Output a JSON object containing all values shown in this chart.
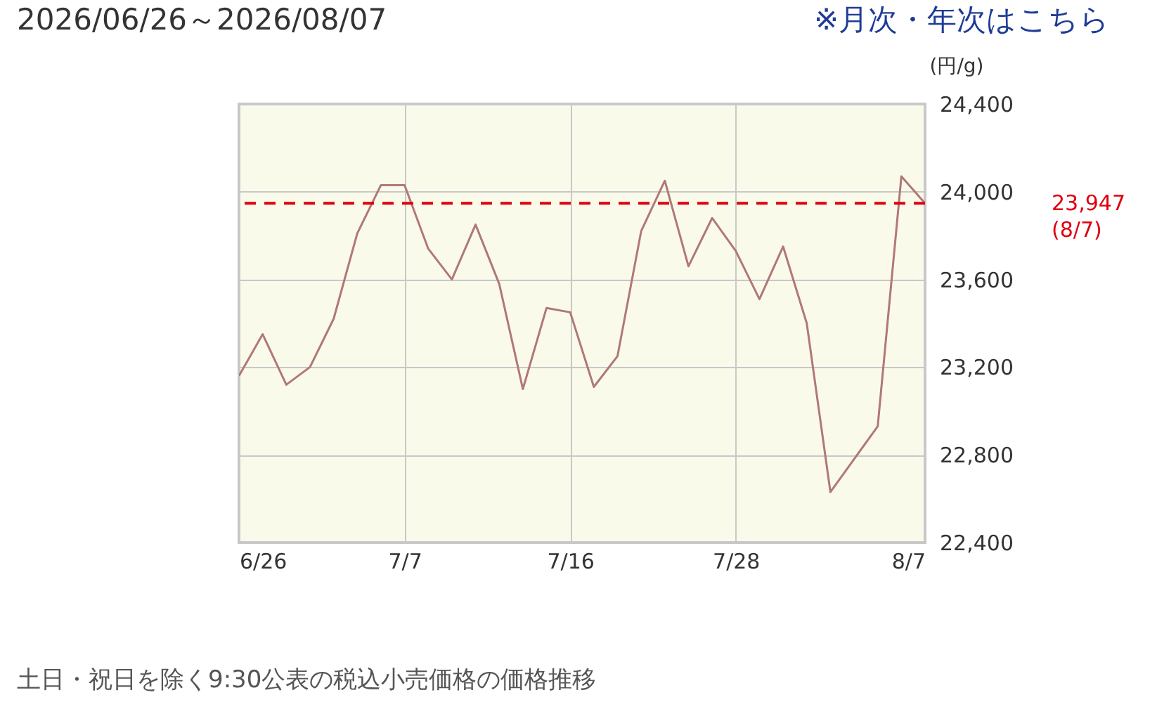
{
  "chart_data": {
    "type": "line",
    "title": "2026/06/26～2026/08/07",
    "ylabel": "(円/g)",
    "annotations": [
      "※月次・年次はこちら",
      "土日・祝日を除く9:30公表の税込小売価格の価格推移"
    ],
    "categories": [
      "6/26",
      null,
      null,
      null,
      null,
      null,
      null,
      "7/7",
      null,
      null,
      null,
      null,
      null,
      null,
      "7/16",
      null,
      null,
      null,
      null,
      null,
      null,
      "7/28",
      null,
      null,
      null,
      null,
      null,
      null,
      null,
      "8/7"
    ],
    "series": [
      {
        "color": "#b07878",
        "values": [
          23160,
          23350,
          23120,
          23200,
          23420,
          23810,
          24030,
          24030,
          23740,
          23600,
          23850,
          23580,
          23100,
          23470,
          23450,
          23110,
          23250,
          23820,
          24050,
          23660,
          23880,
          23730,
          23510,
          23750,
          23400,
          22630,
          22780,
          22930,
          24070,
          23947
        ]
      }
    ],
    "ylim": [
      22400,
      24400
    ],
    "yticks": [
      {
        "value": 22400,
        "label": "22,400"
      },
      {
        "value": 22800,
        "label": "22,800"
      },
      {
        "value": 23200,
        "label": "23,200"
      },
      {
        "value": 23600,
        "label": "23,600"
      },
      {
        "value": 24000,
        "label": "24,000"
      },
      {
        "value": 24400,
        "label": "24,400"
      }
    ],
    "grid": true,
    "ref_lines": [
      {
        "axis": "y",
        "value": 23947,
        "label": "23,947\n(8/7)",
        "color": "#e00010",
        "line_style": "dashed"
      }
    ]
  }
}
